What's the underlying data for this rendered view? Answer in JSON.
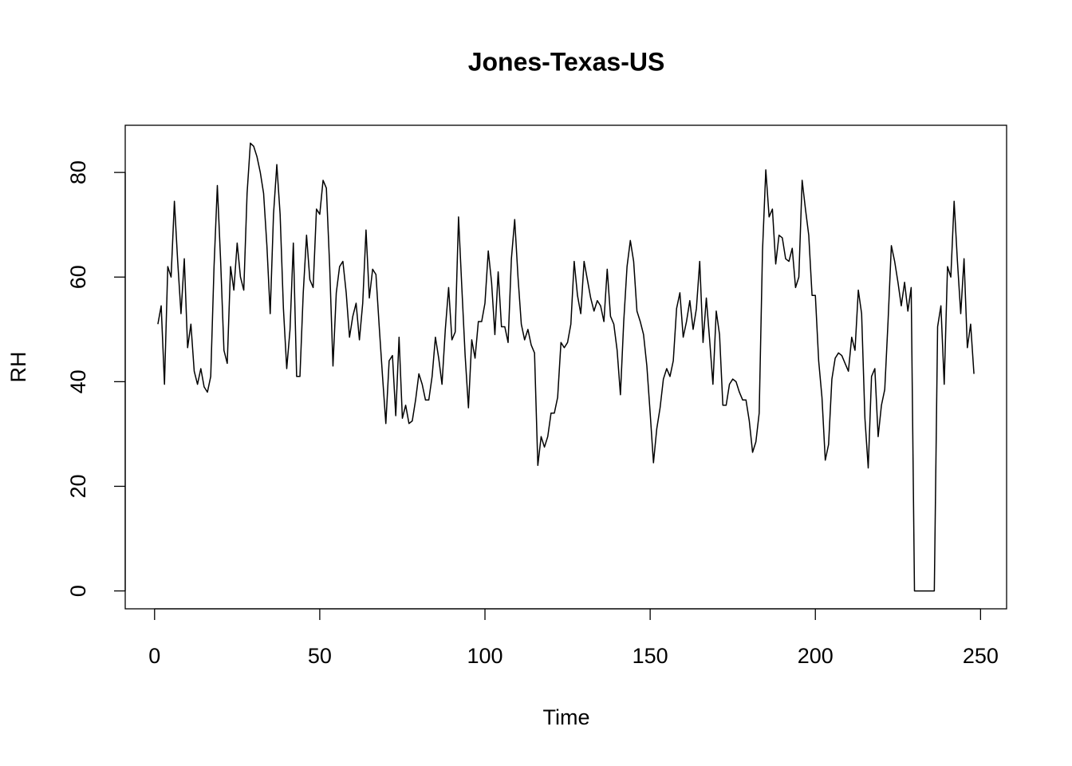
{
  "chart_data": {
    "type": "line",
    "title": "Jones-Texas-US",
    "x_label": "Time",
    "y_label": "RH",
    "x": [
      1,
      2,
      3,
      4,
      5,
      6,
      7,
      8,
      9,
      10,
      11,
      12,
      13,
      14,
      15,
      16,
      17,
      18,
      19,
      20,
      21,
      22,
      23,
      24,
      25,
      26,
      27,
      28,
      29,
      30,
      31,
      32,
      33,
      34,
      35,
      36,
      37,
      38,
      39,
      40,
      41,
      42,
      43,
      44,
      45,
      46,
      47,
      48,
      49,
      50,
      51,
      52,
      53,
      54,
      55,
      56,
      57,
      58,
      59,
      60,
      61,
      62,
      63,
      64,
      65,
      66,
      67,
      68,
      69,
      70,
      71,
      72,
      73,
      74,
      75,
      76,
      77,
      78,
      79,
      80,
      81,
      82,
      83,
      84,
      85,
      86,
      87,
      88,
      89,
      90,
      91,
      92,
      93,
      94,
      95,
      96,
      97,
      98,
      99,
      100,
      101,
      102,
      103,
      104,
      105,
      106,
      107,
      108,
      109,
      110,
      111,
      112,
      113,
      114,
      115,
      116,
      117,
      118,
      119,
      120,
      121,
      122,
      123,
      124,
      125,
      126,
      127,
      128,
      129,
      130,
      131,
      132,
      133,
      134,
      135,
      136,
      137,
      138,
      139,
      140,
      141,
      142,
      143,
      144,
      145,
      146,
      147,
      148,
      149,
      150,
      151,
      152,
      153,
      154,
      155,
      156,
      157,
      158,
      159,
      160,
      161,
      162,
      163,
      164,
      165,
      166,
      167,
      168,
      169,
      170,
      171,
      172,
      173,
      174,
      175,
      176,
      177,
      178,
      179,
      180,
      181,
      182,
      183,
      184,
      185,
      186,
      187,
      188,
      189,
      190,
      191,
      192,
      193,
      194,
      195,
      196,
      197,
      198,
      199,
      200,
      201,
      202,
      203,
      204,
      205,
      206,
      207,
      208,
      209,
      210,
      211,
      212,
      213,
      214,
      215,
      216,
      217,
      218,
      219,
      220,
      221,
      222,
      223,
      224,
      225,
      226,
      227,
      228,
      229,
      230,
      231,
      232,
      233,
      234,
      235,
      236,
      237,
      238,
      239,
      240,
      241,
      242,
      243,
      244,
      245,
      246,
      247,
      248
    ],
    "series": [
      {
        "color": "#000000",
        "values": [
          51,
          54.5,
          39.5,
          62,
          60,
          74.5,
          63,
          53,
          63.5,
          46.5,
          51,
          42,
          39.5,
          42.5,
          39,
          38,
          41,
          62,
          77.5,
          63,
          46,
          43.5,
          62,
          57.5,
          66.5,
          60,
          57.5,
          76,
          85.6,
          85,
          83,
          80,
          76,
          66,
          53,
          72,
          81.5,
          72,
          54,
          42.5,
          50,
          66.5,
          41,
          41,
          57,
          68,
          59.5,
          58,
          73,
          72,
          78.5,
          77,
          62,
          43,
          57,
          62,
          63,
          57,
          48.5,
          52.5,
          55,
          48,
          55,
          69,
          56,
          61.5,
          60.5,
          50.5,
          41,
          32,
          44,
          45,
          33.5,
          48.5,
          33,
          35.5,
          32,
          32.5,
          36.5,
          41.5,
          39.5,
          36.5,
          36.5,
          41,
          48.5,
          44.5,
          39.5,
          50,
          58,
          48,
          49.5,
          71.5,
          58,
          45,
          35,
          48,
          44.5,
          51.5,
          51.5,
          55,
          65,
          59,
          49,
          61,
          50.5,
          50.5,
          47.5,
          63.5,
          71,
          60,
          51,
          48,
          50,
          47,
          45.5,
          24,
          29.5,
          27.5,
          29.5,
          34,
          34,
          37,
          47.5,
          46.5,
          47.5,
          51,
          63,
          56.5,
          53,
          63,
          59.5,
          56,
          53.5,
          55.5,
          54.5,
          51.5,
          61.5,
          52.5,
          51,
          46,
          37.5,
          51.5,
          62,
          67,
          63,
          53.5,
          51.5,
          49,
          43,
          34,
          24.5,
          31,
          35,
          40.5,
          42.5,
          41,
          44,
          54,
          57,
          48.5,
          51.5,
          55.5,
          50,
          54,
          63,
          47.5,
          56,
          48,
          39.5,
          53.5,
          49,
          35.5,
          35.5,
          39.5,
          40.5,
          40,
          38,
          36.5,
          36.5,
          32.5,
          26.5,
          28.5,
          34,
          65,
          80.5,
          71.5,
          73,
          62.5,
          68,
          67.5,
          63.5,
          63,
          65.5,
          58,
          60,
          78.5,
          73,
          68,
          56.5,
          56.5,
          44,
          37,
          25,
          28,
          40.5,
          44.5,
          45.5,
          45,
          43.5,
          42,
          48.5,
          46,
          57.5,
          53,
          33,
          23.5,
          41,
          42.5,
          29.5,
          35.5,
          38.5,
          51.5,
          66,
          63,
          59,
          54.5,
          59,
          53.5,
          58,
          0,
          0,
          0,
          0,
          0,
          0,
          0,
          50.5,
          54.5,
          39.5,
          62,
          60,
          74.5,
          63,
          53,
          63.5,
          46.5,
          51,
          41.5
        ]
      }
    ],
    "xlim": [
      -8.88,
      257.88
    ],
    "ylim": [
      -3.42,
      89.02
    ],
    "xticks": [
      0,
      50,
      100,
      150,
      200,
      250
    ],
    "yticks": [
      0,
      20,
      40,
      60,
      80
    ],
    "grid": false
  }
}
